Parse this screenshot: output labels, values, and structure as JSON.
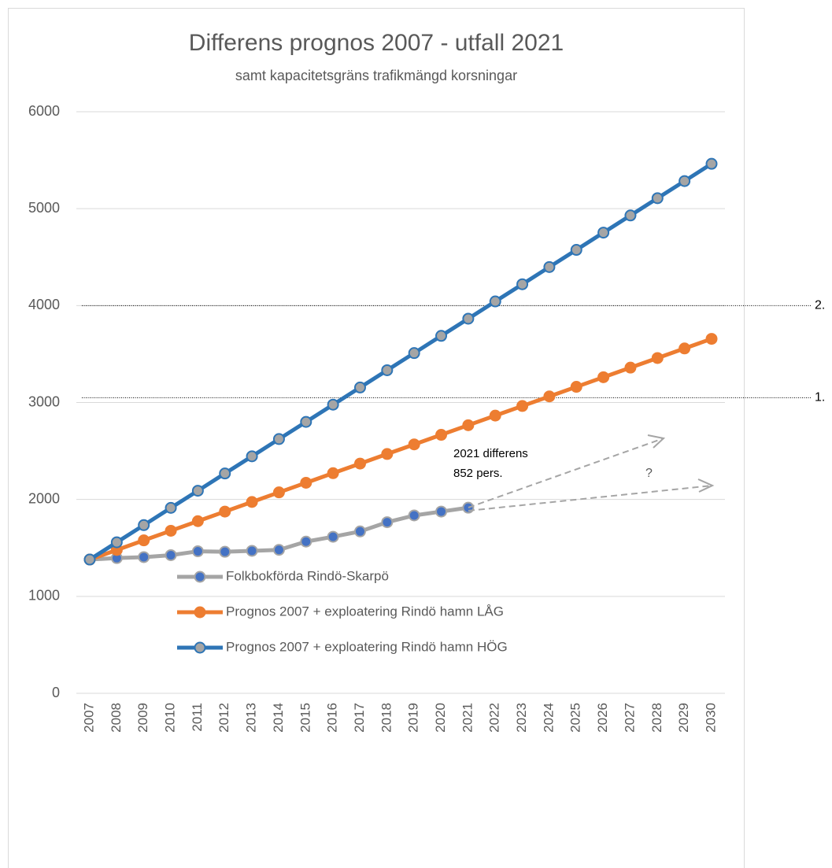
{
  "chart_data": {
    "type": "line",
    "title": "Differens prognos 2007 - utfall 2021",
    "subtitle": "samt kapacitetsgräns trafikmängd korsningar",
    "categories": [
      "2007",
      "2008",
      "2009",
      "2010",
      "2011",
      "2012",
      "2013",
      "2014",
      "2015",
      "2016",
      "2017",
      "2018",
      "2019",
      "2020",
      "2021",
      "2022",
      "2023",
      "2024",
      "2025",
      "2026",
      "2027",
      "2028",
      "2029",
      "2030"
    ],
    "series": [
      {
        "name": "Folkbokförda Rindö-Skarpö",
        "color": "#a5a5a5",
        "marker_color": "#4472c4",
        "values": [
          1380,
          1395,
          1405,
          1425,
          1465,
          1460,
          1470,
          1480,
          1565,
          1615,
          1670,
          1765,
          1835,
          1875,
          1915,
          null,
          null,
          null,
          null,
          null,
          null,
          null,
          null,
          null
        ]
      },
      {
        "name": "Prognos 2007 + exploatering Rindö hamn LÅG",
        "color": "#ed7d31",
        "marker_color": "#ed7d31",
        "values": [
          1380,
          1479,
          1578,
          1677,
          1776,
          1875,
          1974,
          2073,
          2172,
          2271,
          2370,
          2469,
          2568,
          2667,
          2766,
          2865,
          2964,
          3063,
          3162,
          3261,
          3360,
          3459,
          3558,
          3657
        ]
      },
      {
        "name": "Prognos 2007 + exploatering Rindö hamn HÖG",
        "color": "#2e75b6",
        "marker_color": "#a5a5a5",
        "values": [
          1380,
          1558,
          1735,
          1913,
          2090,
          2268,
          2445,
          2623,
          2800,
          2978,
          3155,
          3333,
          3510,
          3688,
          3865,
          4043,
          4220,
          4398,
          4575,
          4753,
          4930,
          5108,
          5285,
          5463
        ]
      }
    ],
    "ylim": [
      0,
      6000
    ],
    "yticks": [
      0,
      1000,
      2000,
      3000,
      4000,
      5000,
      6000
    ],
    "grid": true,
    "reference_lines": [
      {
        "label": "2.",
        "value": 4000
      },
      {
        "label": "1.",
        "value": 3050
      }
    ],
    "annotations": [
      "2021 differens",
      "852 pers.",
      "?"
    ],
    "legend": "bottom"
  }
}
